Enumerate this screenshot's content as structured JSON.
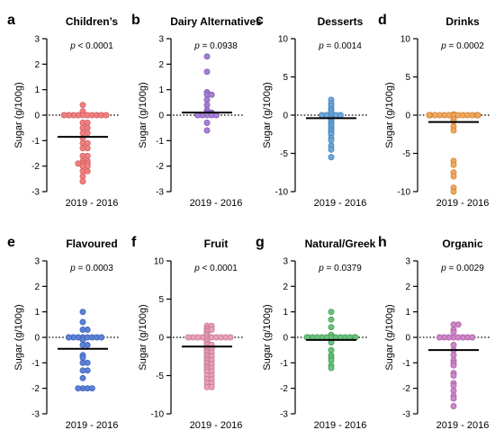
{
  "xlabel": "2019 - 2016",
  "ylabel": "Sugar (g/100g)",
  "chart_data": [
    {
      "letter": "a",
      "title": "Children’s",
      "p": "p < 0.0001",
      "type": "scatter",
      "ylim": [
        -3,
        3
      ],
      "ticks": [
        3,
        2,
        1,
        0,
        -1,
        -2,
        -3
      ],
      "color": "#f08080",
      "edge": "#d05a5a",
      "mean": -0.85,
      "points": [
        0.4,
        0.15,
        0.0,
        0.0,
        0.0,
        0.0,
        0.0,
        0.0,
        0.0,
        0.0,
        0.0,
        0.0,
        -0.3,
        -0.3,
        -0.5,
        -0.5,
        -0.7,
        -0.7,
        -0.9,
        -1.1,
        -1.1,
        -1.3,
        -1.3,
        -1.6,
        -1.6,
        -1.8,
        -1.8,
        -1.9,
        -1.9,
        -1.9,
        -2.0,
        -2.0,
        -2.2,
        -2.2,
        -2.4,
        -2.6
      ]
    },
    {
      "letter": "b",
      "title": "Dairy Alternatives",
      "p": "p = 0.0938",
      "type": "scatter",
      "ylim": [
        -3,
        3
      ],
      "ticks": [
        3,
        2,
        1,
        0,
        -1,
        -2,
        -3
      ],
      "color": "#a57fd3",
      "edge": "#7d57ad",
      "mean": 0.1,
      "points": [
        2.3,
        1.7,
        0.9,
        0.8,
        0.8,
        0.6,
        0.4,
        0.2,
        0.1,
        0.1,
        0.05,
        0.05,
        0.0,
        0.0,
        0.0,
        0.0,
        0.0,
        -0.3,
        -0.6
      ]
    },
    {
      "letter": "c",
      "title": "Desserts",
      "p": "p = 0.0014",
      "type": "scatter",
      "ylim": [
        -10,
        10
      ],
      "ticks": [
        10,
        5,
        0,
        -5,
        -10
      ],
      "color": "#6fa8d8",
      "edge": "#3f7eb5",
      "mean": -0.4,
      "points": [
        2.0,
        1.5,
        1.2,
        0.8,
        0.6,
        0.3,
        0.0,
        0.0,
        0.0,
        0.0,
        0.0,
        -0.3,
        -0.5,
        -0.7,
        -1.0,
        -1.2,
        -1.5,
        -1.8,
        -2.0,
        -2.3,
        -2.5,
        -3.0,
        -3.3,
        -4.0,
        -4.5,
        -5.5
      ]
    },
    {
      "letter": "d",
      "title": "Drinks",
      "p": "p = 0.0002",
      "type": "scatter",
      "ylim": [
        -10,
        10
      ],
      "ticks": [
        10,
        5,
        0,
        -5,
        -10
      ],
      "color": "#f0a860",
      "edge": "#cf7f30",
      "mean": -0.9,
      "points": [
        0.1,
        0.05,
        0.0,
        0.0,
        0.0,
        0.0,
        0.0,
        0.0,
        0.0,
        0.0,
        0.0,
        0.0,
        0.0,
        0.0,
        0.0,
        0.0,
        0.0,
        0.0,
        -0.5,
        -0.8,
        -1.5,
        -2.0,
        -6.0,
        -6.5,
        -7.5,
        -8.0,
        -9.5,
        -10.0
      ]
    },
    {
      "letter": "e",
      "title": "Flavoured",
      "p": "p = 0.0003",
      "type": "scatter",
      "ylim": [
        -3,
        3
      ],
      "ticks": [
        3,
        2,
        1,
        0,
        -1,
        -2,
        -3
      ],
      "color": "#5b82d6",
      "edge": "#3b5fb0",
      "mean": -0.45,
      "points": [
        1.0,
        0.6,
        0.3,
        0.3,
        0.0,
        0.0,
        0.0,
        0.0,
        0.0,
        0.0,
        0.0,
        0.0,
        -0.1,
        -0.3,
        -0.3,
        -0.7,
        -0.8,
        -1.0,
        -1.0,
        -1.3,
        -1.3,
        -1.6,
        -2.0,
        -2.0,
        -2.0,
        -2.0
      ]
    },
    {
      "letter": "f",
      "title": "Fruit",
      "p": "p < 0.0001",
      "type": "scatter",
      "ylim": [
        -10,
        10
      ],
      "ticks": [
        10,
        5,
        0,
        -5,
        -10
      ],
      "color": "#e8a0b8",
      "edge": "#c27590",
      "mean": -1.2,
      "points": [
        1.5,
        1.5,
        1.2,
        1.0,
        1.0,
        0.8,
        0.5,
        0.3,
        0.0,
        0.0,
        0.0,
        0.0,
        0.0,
        0.0,
        0.0,
        0.0,
        0.0,
        0.0,
        -0.3,
        -0.5,
        -0.8,
        -1.0,
        -1.0,
        -1.3,
        -1.5,
        -1.5,
        -1.8,
        -2.0,
        -2.0,
        -2.3,
        -2.5,
        -2.5,
        -2.8,
        -3.0,
        -3.0,
        -3.3,
        -3.5,
        -3.5,
        -3.8,
        -4.0,
        -4.0,
        -4.3,
        -4.5,
        -4.5,
        -5.0,
        -5.0,
        -5.5,
        -5.5,
        -6.0,
        -6.0,
        -6.5,
        -6.5
      ]
    },
    {
      "letter": "g",
      "title": "Natural/Greek",
      "p": "p = 0.0379",
      "type": "scatter",
      "ylim": [
        -3,
        3
      ],
      "ticks": [
        3,
        2,
        1,
        0,
        -1,
        -2,
        -3
      ],
      "color": "#6cc17e",
      "edge": "#3e9a52",
      "mean": -0.1,
      "points": [
        1.0,
        0.7,
        0.4,
        0.1,
        0.0,
        0.0,
        0.0,
        0.0,
        0.0,
        0.0,
        0.0,
        0.0,
        0.0,
        0.0,
        0.0,
        0.0,
        0.0,
        -0.2,
        -0.5,
        -0.7,
        -0.8,
        -0.9,
        -1.1,
        -1.2
      ]
    },
    {
      "letter": "h",
      "title": "Organic",
      "p": "p = 0.0029",
      "type": "scatter",
      "ylim": [
        -3,
        3
      ],
      "ticks": [
        3,
        2,
        1,
        0,
        -1,
        -2,
        -3
      ],
      "color": "#cf86c8",
      "edge": "#a35b9c",
      "mean": -0.5,
      "points": [
        0.5,
        0.5,
        0.3,
        0.2,
        0.0,
        0.0,
        0.0,
        0.0,
        0.0,
        0.0,
        0.0,
        0.0,
        -0.3,
        -0.5,
        -0.7,
        -0.9,
        -1.0,
        -1.1,
        -1.4,
        -1.5,
        -1.8,
        -1.9,
        -2.1,
        -2.3,
        -2.4,
        -2.7
      ]
    }
  ]
}
